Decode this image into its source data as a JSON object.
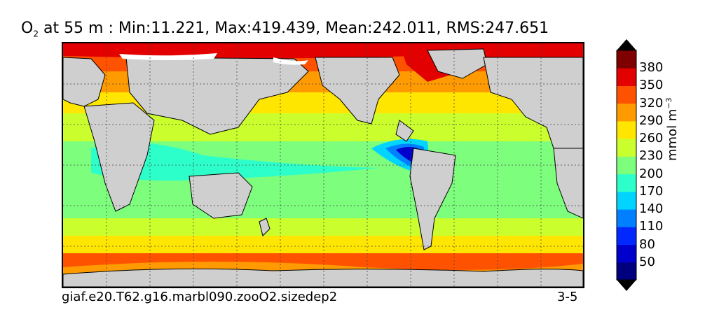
{
  "title": {
    "variable": "O",
    "subscript": "2",
    "rest": " at 55 m : Min:11.221, Max:419.439, Mean:242.011, RMS:247.651"
  },
  "caption_left": "giaf.e20.T62.g16.marbl090.zooO2.sizedep2",
  "caption_right": "3-5",
  "colorbar": {
    "unit_prefix": "mmol m",
    "unit_exponent": "−3",
    "ticks": [
      "50",
      "80",
      "110",
      "140",
      "170",
      "200",
      "230",
      "260",
      "290",
      "320",
      "350",
      "380"
    ],
    "colors": [
      "#00007f",
      "#0000cc",
      "#0028ff",
      "#0080ff",
      "#00d4ff",
      "#2dffca",
      "#7dff7d",
      "#caff2d",
      "#ffe600",
      "#ff9a00",
      "#ff5200",
      "#e30000",
      "#7f0000"
    ],
    "extend": "both"
  },
  "map": {
    "land_color": "#cfcfcf",
    "grid": "dotted"
  }
}
